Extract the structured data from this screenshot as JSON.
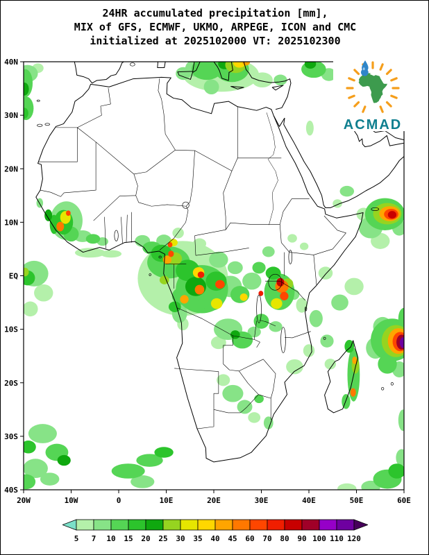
{
  "title": {
    "line1": "24HR accumulated precipitation [mm],",
    "line2": "MIX of GFS, ECMWF, UKMO, ARPEGE, ICON and CMC",
    "line3": "initialized at 2025102000 VT: 2025102300"
  },
  "logo": {
    "text": "ACMAD"
  },
  "map": {
    "lat_ticks": [
      "40N",
      "30N",
      "20N",
      "10N",
      "EQ",
      "10S",
      "20S",
      "30S",
      "40S"
    ],
    "lon_ticks": [
      "20W",
      "10W",
      "0",
      "10E",
      "20E",
      "30E",
      "40E",
      "50E",
      "60E"
    ]
  },
  "colorbar": {
    "labels": [
      "5",
      "7",
      "10",
      "15",
      "20",
      "25",
      "30",
      "35",
      "40",
      "45",
      "60",
      "70",
      "80",
      "90",
      "100",
      "110",
      "120"
    ]
  },
  "chart_data": {
    "type": "heatmap",
    "title": "24HR accumulated precipitation [mm]",
    "models": [
      "GFS",
      "ECMWF",
      "UKMO",
      "ARPEGE",
      "ICON",
      "CMC"
    ],
    "initialized": "2025102000",
    "valid_time": "2025102300",
    "units": "mm",
    "lon_range": [
      -20,
      60
    ],
    "lat_range": [
      -40,
      40
    ],
    "scale_mm": [
      5,
      7,
      10,
      15,
      20,
      25,
      30,
      35,
      40,
      45,
      60,
      70,
      80,
      90,
      100,
      110,
      120
    ],
    "palette": [
      "#7be0c8",
      "#b4f0aa",
      "#87e387",
      "#55d555",
      "#2cc42c",
      "#0fa80f",
      "#96d420",
      "#e6e600",
      "#ffd700",
      "#ffa500",
      "#ff7800",
      "#ff4600",
      "#f01e00",
      "#c80000",
      "#a00028",
      "#9600c8",
      "#6e00a0",
      "#46005a"
    ],
    "regions_format": [
      "lon",
      "lat",
      "rx_deg",
      "ry_deg",
      "mm"
    ],
    "regions": [
      [
        -19.2,
        37.8,
        2.2,
        1.6,
        8
      ],
      [
        -19.6,
        36.0,
        1.5,
        2.6,
        12
      ],
      [
        -19.8,
        34.9,
        0.9,
        1.2,
        22
      ],
      [
        -19.5,
        31.3,
        1.6,
        2.2,
        12
      ],
      [
        -19.8,
        30.4,
        0.8,
        1.0,
        17
      ],
      [
        -17.0,
        38.8,
        1.2,
        0.9,
        6
      ],
      [
        21.5,
        37.6,
        8.0,
        3.2,
        6
      ],
      [
        18.5,
        38.6,
        3.2,
        2.0,
        12
      ],
      [
        23.8,
        38.6,
        3.6,
        2.4,
        12
      ],
      [
        24.6,
        39.4,
        2.2,
        1.5,
        27
      ],
      [
        25.4,
        39.8,
        1.3,
        0.9,
        37
      ],
      [
        22.3,
        39.6,
        1.4,
        1.0,
        22
      ],
      [
        26.8,
        39.9,
        0.8,
        0.6,
        42
      ],
      [
        16.2,
        38.8,
        2.2,
        1.6,
        8
      ],
      [
        13.6,
        37.8,
        1.6,
        1.2,
        8
      ],
      [
        19.5,
        35.3,
        1.6,
        1.4,
        8
      ],
      [
        30.2,
        36.6,
        2.2,
        1.4,
        6
      ],
      [
        34.0,
        36.6,
        1.4,
        1.0,
        8
      ],
      [
        41.0,
        38.6,
        2.6,
        1.6,
        12
      ],
      [
        44.2,
        37.6,
        1.6,
        1.2,
        8
      ],
      [
        46.8,
        39.2,
        1.4,
        1.0,
        12
      ],
      [
        40.3,
        39.6,
        1.2,
        0.9,
        22
      ],
      [
        40.2,
        27.6,
        0.8,
        1.4,
        6
      ],
      [
        -11.0,
        10.3,
        3.4,
        3.6,
        8
      ],
      [
        -11.6,
        10.0,
        2.0,
        2.3,
        17
      ],
      [
        -11.2,
        10.9,
        1.1,
        1.2,
        32
      ],
      [
        -12.3,
        9.2,
        0.8,
        0.9,
        50
      ],
      [
        -10.6,
        11.7,
        0.5,
        0.5,
        65
      ],
      [
        -10.0,
        7.8,
        1.6,
        1.4,
        12
      ],
      [
        -13.6,
        9.6,
        0.9,
        1.8,
        17
      ],
      [
        -7.6,
        7.4,
        1.9,
        1.1,
        8
      ],
      [
        -5.4,
        6.9,
        1.5,
        0.9,
        12
      ],
      [
        -3.4,
        6.4,
        1.2,
        0.8,
        8
      ],
      [
        -16.6,
        13.6,
        0.7,
        0.9,
        8
      ],
      [
        -14.8,
        11.3,
        0.8,
        1.1,
        22
      ],
      [
        -17.8,
        0.4,
        3.0,
        2.4,
        8
      ],
      [
        -19.2,
        -0.4,
        1.6,
        1.4,
        17
      ],
      [
        -19.7,
        0.7,
        0.8,
        0.8,
        27
      ],
      [
        -15.8,
        -3.2,
        2.0,
        1.6,
        6
      ],
      [
        -18.6,
        -6.2,
        1.6,
        1.4,
        6
      ],
      [
        -6.0,
        4.3,
        3.2,
        0.9,
        6
      ],
      [
        -1.6,
        4.1,
        2.2,
        0.7,
        6
      ],
      [
        13.5,
        -0.5,
        9.5,
        7.0,
        6
      ],
      [
        10.5,
        2.5,
        4.5,
        3.0,
        12
      ],
      [
        17.5,
        -2.5,
        5.5,
        4.5,
        12
      ],
      [
        9.0,
        4.2,
        2.2,
        1.6,
        17
      ],
      [
        11.8,
        3.2,
        1.5,
        1.2,
        27
      ],
      [
        10.2,
        3.0,
        0.9,
        0.8,
        42
      ],
      [
        11.0,
        4.1,
        0.6,
        0.6,
        65
      ],
      [
        14.5,
        1.0,
        2.5,
        2.0,
        17
      ],
      [
        16.8,
        0.6,
        1.2,
        1.0,
        37
      ],
      [
        17.3,
        0.2,
        0.7,
        0.6,
        75
      ],
      [
        16.2,
        -2.0,
        2.2,
        1.8,
        22
      ],
      [
        17.0,
        -2.6,
        1.0,
        0.9,
        50
      ],
      [
        20.5,
        -1.0,
        2.2,
        1.8,
        17
      ],
      [
        21.3,
        -1.6,
        1.0,
        0.8,
        65
      ],
      [
        19.5,
        -4.5,
        2.6,
        2.0,
        12
      ],
      [
        20.6,
        -5.2,
        1.2,
        1.0,
        32
      ],
      [
        13.2,
        -3.8,
        2.0,
        1.6,
        12
      ],
      [
        13.8,
        -4.4,
        0.9,
        0.8,
        42
      ],
      [
        23.5,
        -2.0,
        2.4,
        2.0,
        8
      ],
      [
        25.5,
        -3.5,
        2.0,
        1.6,
        12
      ],
      [
        26.3,
        -4.0,
        0.8,
        0.7,
        37
      ],
      [
        7.0,
        5.2,
        2.0,
        1.2,
        12
      ],
      [
        5.0,
        6.5,
        1.6,
        1.1,
        8
      ],
      [
        9.5,
        6.5,
        1.6,
        1.2,
        8
      ],
      [
        11.5,
        6.2,
        0.9,
        0.7,
        32
      ],
      [
        10.8,
        5.8,
        0.5,
        0.5,
        65
      ],
      [
        12.5,
        8.0,
        1.2,
        1.0,
        6
      ],
      [
        17.0,
        6.0,
        1.4,
        1.0,
        6
      ],
      [
        21.0,
        3.0,
        2.0,
        1.5,
        8
      ],
      [
        24.5,
        1.5,
        1.6,
        1.2,
        8
      ],
      [
        28.0,
        -1.0,
        2.0,
        1.6,
        8
      ],
      [
        29.5,
        1.5,
        1.4,
        1.1,
        12
      ],
      [
        29.9,
        -3.3,
        0.5,
        0.5,
        75
      ],
      [
        9.6,
        -0.8,
        1.0,
        0.8,
        27
      ],
      [
        11.8,
        -5.8,
        1.3,
        1.0,
        17
      ],
      [
        33.8,
        -3.0,
        3.2,
        3.4,
        12
      ],
      [
        34.3,
        -2.0,
        1.4,
        1.2,
        50
      ],
      [
        34.0,
        -1.2,
        0.8,
        0.8,
        85
      ],
      [
        34.8,
        -3.8,
        0.9,
        0.8,
        65
      ],
      [
        33.2,
        -5.2,
        1.2,
        1.0,
        32
      ],
      [
        35.5,
        -1.5,
        1.2,
        1.0,
        27
      ],
      [
        32.5,
        0.5,
        1.6,
        1.2,
        17
      ],
      [
        36.8,
        -3.5,
        1.2,
        1.0,
        8
      ],
      [
        38.5,
        -5.5,
        1.2,
        1.4,
        6
      ],
      [
        31.5,
        4.5,
        1.3,
        1.0,
        8
      ],
      [
        36.5,
        7.0,
        1.0,
        0.8,
        6
      ],
      [
        39.0,
        5.5,
        0.9,
        0.7,
        6
      ],
      [
        23.0,
        -10.0,
        3.0,
        2.0,
        8
      ],
      [
        26.0,
        -12.0,
        2.2,
        1.6,
        12
      ],
      [
        24.5,
        -11.0,
        1.0,
        0.8,
        22
      ],
      [
        21.0,
        -12.5,
        1.6,
        1.2,
        6
      ],
      [
        28.5,
        -10.5,
        1.4,
        1.0,
        8
      ],
      [
        30.0,
        -8.5,
        1.6,
        1.4,
        12
      ],
      [
        33.0,
        -9.5,
        1.4,
        1.0,
        8
      ],
      [
        12.8,
        -7.0,
        1.6,
        1.8,
        8
      ],
      [
        13.5,
        -9.0,
        1.2,
        1.2,
        6
      ],
      [
        56.0,
        11.5,
        4.2,
        3.0,
        12
      ],
      [
        56.5,
        11.6,
        3.0,
        2.0,
        27
      ],
      [
        57.0,
        11.6,
        2.2,
        1.4,
        42
      ],
      [
        57.3,
        11.5,
        1.5,
        1.0,
        65
      ],
      [
        57.5,
        11.4,
        0.9,
        0.7,
        85
      ],
      [
        53.0,
        9.0,
        2.5,
        2.0,
        8
      ],
      [
        51.5,
        11.5,
        1.5,
        1.2,
        6
      ],
      [
        59.0,
        9.0,
        1.5,
        1.5,
        8
      ],
      [
        55.0,
        6.5,
        2.0,
        1.5,
        6
      ],
      [
        48.0,
        15.8,
        1.5,
        1.0,
        8
      ],
      [
        46.0,
        13.5,
        1.0,
        0.8,
        6
      ],
      [
        49.5,
        -2.0,
        2.0,
        1.6,
        6
      ],
      [
        43.5,
        0.5,
        1.5,
        1.2,
        6
      ],
      [
        46.5,
        -5.0,
        1.8,
        1.5,
        8
      ],
      [
        41.5,
        -8.0,
        1.4,
        1.6,
        8
      ],
      [
        57.5,
        -12.0,
        4.5,
        4.0,
        12
      ],
      [
        58.3,
        -12.2,
        3.0,
        3.0,
        27
      ],
      [
        58.8,
        -12.2,
        2.2,
        2.4,
        42
      ],
      [
        59.2,
        -12.3,
        1.6,
        1.8,
        65
      ],
      [
        59.5,
        -12.4,
        1.1,
        1.4,
        95
      ],
      [
        59.8,
        -12.5,
        0.7,
        1.0,
        115
      ],
      [
        55.5,
        -9.5,
        2.0,
        1.8,
        8
      ],
      [
        54.0,
        -13.5,
        2.0,
        2.0,
        8
      ],
      [
        56.5,
        -16.5,
        2.0,
        1.8,
        12
      ],
      [
        59.0,
        -17.5,
        1.5,
        1.5,
        8
      ],
      [
        60.0,
        -8.0,
        1.2,
        2.0,
        12
      ],
      [
        49.4,
        -18.5,
        1.3,
        5.0,
        12
      ],
      [
        49.8,
        -16.8,
        0.8,
        1.5,
        27
      ],
      [
        49.6,
        -15.8,
        0.5,
        0.7,
        42
      ],
      [
        49.3,
        -21.8,
        0.6,
        0.8,
        50
      ],
      [
        48.5,
        -13.2,
        1.0,
        1.2,
        17
      ],
      [
        47.8,
        -23.5,
        0.9,
        1.4,
        12
      ],
      [
        44.5,
        -16.5,
        1.2,
        1.0,
        6
      ],
      [
        43.8,
        -12.2,
        1.4,
        1.2,
        8
      ],
      [
        37.0,
        -17.0,
        1.8,
        1.4,
        6
      ],
      [
        40.0,
        -14.0,
        1.2,
        1.2,
        6
      ],
      [
        24.0,
        -22.0,
        2.2,
        1.6,
        8
      ],
      [
        26.5,
        -24.5,
        1.6,
        1.3,
        8
      ],
      [
        28.5,
        -26.5,
        1.3,
        1.0,
        6
      ],
      [
        22.0,
        -19.5,
        1.4,
        1.1,
        6
      ],
      [
        29.5,
        -23.0,
        1.0,
        0.8,
        12
      ],
      [
        31.5,
        -27.5,
        1.0,
        1.2,
        8
      ],
      [
        -16.0,
        -29.5,
        3.0,
        1.8,
        8
      ],
      [
        -13.0,
        -33.0,
        2.4,
        1.6,
        12
      ],
      [
        -11.5,
        -34.5,
        1.4,
        1.0,
        22
      ],
      [
        -17.5,
        -36.0,
        2.6,
        1.8,
        8
      ],
      [
        -19.0,
        -32.0,
        1.6,
        1.2,
        17
      ],
      [
        -19.5,
        -38.5,
        2.0,
        1.4,
        12
      ],
      [
        -14.5,
        -38.0,
        2.0,
        1.2,
        8
      ],
      [
        2.0,
        -36.5,
        3.5,
        1.4,
        12
      ],
      [
        6.5,
        -34.5,
        2.8,
        1.2,
        12
      ],
      [
        9.5,
        -33.0,
        2.0,
        1.0,
        17
      ],
      [
        5.0,
        -38.5,
        2.5,
        1.2,
        8
      ],
      [
        56.5,
        -38.0,
        3.0,
        1.8,
        12
      ],
      [
        58.5,
        -36.5,
        1.8,
        1.4,
        17
      ],
      [
        59.5,
        -34.0,
        1.2,
        1.6,
        8
      ],
      [
        53.0,
        -39.5,
        2.0,
        1.2,
        8
      ],
      [
        48.0,
        -39.8,
        2.0,
        1.0,
        6
      ],
      [
        59.8,
        -27.0,
        1.0,
        2.0,
        8
      ]
    ]
  }
}
